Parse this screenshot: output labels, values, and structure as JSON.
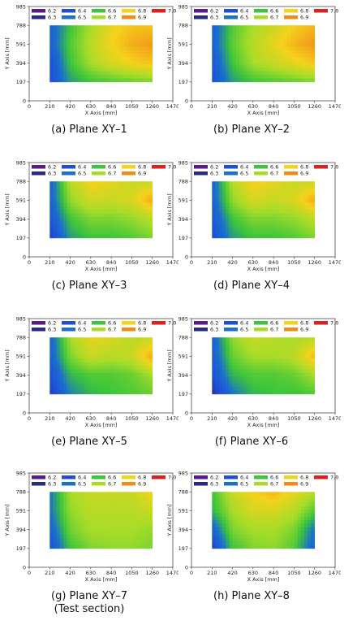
{
  "legend": [
    {
      "label": "6.2",
      "color": "#5a1a8c"
    },
    {
      "label": "6.3",
      "color": "#262a86"
    },
    {
      "label": "6.4",
      "color": "#1f4fd8"
    },
    {
      "label": "6.5",
      "color": "#1a6fcc"
    },
    {
      "label": "6.6",
      "color": "#3cc53a"
    },
    {
      "label": "6.7",
      "color": "#a8dc28"
    },
    {
      "label": "6.8",
      "color": "#f5d21c"
    },
    {
      "label": "6.9",
      "color": "#f08a18"
    },
    {
      "label": "7.0",
      "color": "#e02020"
    }
  ],
  "chart_data": [
    {
      "type": "heatmap",
      "xlabel": "X Axis [mm]",
      "ylabel": "Y Axis [mm]",
      "xticks": [
        "0",
        "210",
        "420",
        "630",
        "840",
        "1050",
        "1260",
        "1470"
      ],
      "yticks": [
        "0",
        "197",
        "394",
        "591",
        "788",
        "985"
      ],
      "xlim": [
        0,
        1470
      ],
      "ylim": [
        0,
        985
      ],
      "data_extent_x": [
        210,
        1260
      ],
      "data_extent_y": [
        197,
        788
      ],
      "caption": "(a) Plane XY–1",
      "field": [
        [
          6.45,
          6.6,
          6.7,
          6.78,
          6.82,
          6.82
        ],
        [
          6.45,
          6.62,
          6.72,
          6.8,
          6.85,
          6.88
        ],
        [
          6.4,
          6.6,
          6.7,
          6.76,
          6.8,
          6.82
        ],
        [
          6.4,
          6.55,
          6.6,
          6.62,
          6.64,
          6.66
        ]
      ]
    },
    {
      "type": "heatmap",
      "xlabel": "X Axis [mm]",
      "ylabel": "Y Axis [mm]",
      "xticks": [
        "0",
        "210",
        "420",
        "630",
        "840",
        "1050",
        "1260",
        "1470"
      ],
      "yticks": [
        "0",
        "197",
        "394",
        "591",
        "788",
        "985"
      ],
      "xlim": [
        0,
        1470
      ],
      "ylim": [
        0,
        985
      ],
      "data_extent_x": [
        210,
        1260
      ],
      "data_extent_y": [
        197,
        788
      ],
      "caption": "(b) Plane XY–2",
      "field": [
        [
          6.45,
          6.62,
          6.7,
          6.74,
          6.8,
          6.84
        ],
        [
          6.45,
          6.63,
          6.72,
          6.78,
          6.84,
          6.88
        ],
        [
          6.42,
          6.6,
          6.7,
          6.74,
          6.78,
          6.82
        ],
        [
          6.4,
          6.55,
          6.6,
          6.62,
          6.64,
          6.66
        ]
      ]
    },
    {
      "type": "heatmap",
      "xlabel": "X Axis [mm]",
      "ylabel": "Y Axis [mm]",
      "xticks": [
        "0",
        "210",
        "420",
        "630",
        "840",
        "1050",
        "1260",
        "1470"
      ],
      "yticks": [
        "0",
        "197",
        "394",
        "591",
        "788",
        "985"
      ],
      "xlim": [
        0,
        1470
      ],
      "ylim": [
        0,
        985
      ],
      "data_extent_x": [
        210,
        1260
      ],
      "data_extent_y": [
        197,
        788
      ],
      "caption": "(c) Plane XY–3",
      "field": [
        [
          6.45,
          6.72,
          6.8,
          6.78,
          6.74,
          6.74
        ],
        [
          6.45,
          6.68,
          6.75,
          6.74,
          6.76,
          6.86
        ],
        [
          6.42,
          6.6,
          6.66,
          6.66,
          6.68,
          6.72
        ],
        [
          6.35,
          6.55,
          6.6,
          6.6,
          6.62,
          6.66
        ]
      ]
    },
    {
      "type": "heatmap",
      "xlabel": "X Axis [mm]",
      "ylabel": "Y Axis [mm]",
      "xticks": [
        "0",
        "210",
        "420",
        "630",
        "840",
        "1050",
        "1260",
        "1470"
      ],
      "yticks": [
        "0",
        "197",
        "394",
        "591",
        "788",
        "985"
      ],
      "xlim": [
        0,
        1470
      ],
      "ylim": [
        0,
        985
      ],
      "data_extent_x": [
        210,
        1260
      ],
      "data_extent_y": [
        197,
        788
      ],
      "caption": "(d) Plane XY–4",
      "field": [
        [
          6.45,
          6.72,
          6.8,
          6.78,
          6.74,
          6.74
        ],
        [
          6.45,
          6.68,
          6.76,
          6.74,
          6.76,
          6.86
        ],
        [
          6.42,
          6.6,
          6.66,
          6.66,
          6.68,
          6.72
        ],
        [
          6.38,
          6.55,
          6.6,
          6.6,
          6.62,
          6.66
        ]
      ]
    },
    {
      "type": "heatmap",
      "xlabel": "X Axis [mm]",
      "ylabel": "Y Axis [mm]",
      "xticks": [
        "0",
        "210",
        "420",
        "630",
        "840",
        "1050",
        "1260",
        "1470"
      ],
      "yticks": [
        "0",
        "197",
        "394",
        "591",
        "788",
        "985"
      ],
      "xlim": [
        0,
        1470
      ],
      "ylim": [
        0,
        985
      ],
      "data_extent_x": [
        210,
        1260
      ],
      "data_extent_y": [
        197,
        788
      ],
      "caption": "(e) Plane XY–5",
      "field": [
        [
          6.45,
          6.7,
          6.78,
          6.76,
          6.72,
          6.74
        ],
        [
          6.45,
          6.66,
          6.74,
          6.72,
          6.74,
          6.86
        ],
        [
          6.4,
          6.58,
          6.62,
          6.62,
          6.64,
          6.7
        ],
        [
          6.35,
          6.52,
          6.58,
          6.6,
          6.62,
          6.64
        ]
      ]
    },
    {
      "type": "heatmap",
      "xlabel": "X Axis [mm]",
      "ylabel": "Y Axis [mm]",
      "xticks": [
        "0",
        "210",
        "420",
        "630",
        "840",
        "1050",
        "1260",
        "1470"
      ],
      "yticks": [
        "0",
        "197",
        "394",
        "591",
        "788",
        "985"
      ],
      "xlim": [
        0,
        1470
      ],
      "ylim": [
        0,
        985
      ],
      "data_extent_x": [
        210,
        1260
      ],
      "data_extent_y": [
        197,
        788
      ],
      "caption": "(f) Plane XY–6",
      "field": [
        [
          6.45,
          6.68,
          6.74,
          6.72,
          6.7,
          6.72
        ],
        [
          6.43,
          6.64,
          6.7,
          6.7,
          6.72,
          6.84
        ],
        [
          6.4,
          6.58,
          6.62,
          6.62,
          6.64,
          6.7
        ],
        [
          6.32,
          6.5,
          6.58,
          6.6,
          6.6,
          6.62
        ]
      ]
    },
    {
      "type": "heatmap",
      "xlabel": "X Axis [mm]",
      "ylabel": "Y Axis [mm]",
      "xticks": [
        "0",
        "210",
        "420",
        "630",
        "840",
        "1050",
        "1260",
        "1470"
      ],
      "yticks": [
        "0",
        "197",
        "394",
        "591",
        "788",
        "985"
      ],
      "xlim": [
        0,
        1470
      ],
      "ylim": [
        0,
        985
      ],
      "data_extent_x": [
        210,
        1260
      ],
      "data_extent_y": [
        197,
        788
      ],
      "caption": "(g) Plane XY–7",
      "caption_sub": "(Test section)",
      "field": [
        [
          6.5,
          6.7,
          6.74,
          6.74,
          6.74,
          6.8
        ],
        [
          6.5,
          6.68,
          6.72,
          6.72,
          6.72,
          6.74
        ],
        [
          6.45,
          6.65,
          6.7,
          6.7,
          6.7,
          6.68
        ],
        [
          6.4,
          6.6,
          6.66,
          6.68,
          6.68,
          6.66
        ]
      ]
    },
    {
      "type": "heatmap",
      "xlabel": "X Axis [mm]",
      "ylabel": "Y Axis [mm]",
      "xticks": [
        "0",
        "210",
        "420",
        "630",
        "840",
        "1050",
        "1260",
        "1470"
      ],
      "yticks": [
        "0",
        "197",
        "394",
        "591",
        "788",
        "985"
      ],
      "xlim": [
        0,
        1470
      ],
      "ylim": [
        0,
        985
      ],
      "data_extent_x": [
        210,
        1260
      ],
      "data_extent_y": [
        197,
        788
      ],
      "caption": "(h) Plane XY–8",
      "field": [
        [
          6.6,
          6.74,
          6.8,
          6.84,
          6.78,
          6.72
        ],
        [
          6.58,
          6.7,
          6.76,
          6.76,
          6.72,
          6.62
        ],
        [
          6.45,
          6.66,
          6.7,
          6.7,
          6.66,
          6.5
        ],
        [
          6.35,
          6.6,
          6.66,
          6.68,
          6.62,
          6.45
        ]
      ]
    }
  ]
}
